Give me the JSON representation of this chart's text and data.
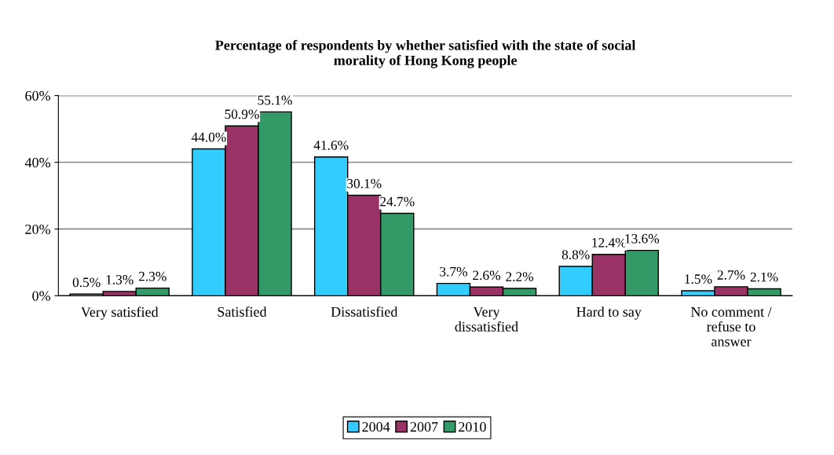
{
  "chart_data": {
    "type": "bar",
    "title": "Percentage of respondents by whether satisfied with the state of social\nmorality of Hong Kong people",
    "categories": [
      "Very satisfied",
      "Satisfied",
      "Dissatisfied",
      "Very\ndissatisfied",
      "Hard to say",
      "No comment /\nrefuse to\nanswer"
    ],
    "series": [
      {
        "name": "2004",
        "color": "#33ccff",
        "values": [
          0.5,
          44.0,
          41.6,
          3.7,
          8.8,
          1.5
        ],
        "value_labels": [
          "0.5%",
          "44.0%",
          "41.6%",
          "3.7%",
          "8.8%",
          "1.5%"
        ]
      },
      {
        "name": "2007",
        "color": "#993366",
        "values": [
          1.3,
          50.9,
          30.1,
          2.6,
          12.4,
          2.7
        ],
        "value_labels": [
          "1.3%",
          "50.9%",
          "30.1%",
          "2.6%",
          "12.4%",
          "2.7%"
        ]
      },
      {
        "name": "2010",
        "color": "#339966",
        "values": [
          2.3,
          55.1,
          24.7,
          2.2,
          13.6,
          2.1
        ],
        "value_labels": [
          "2.3%",
          "55.1%",
          "24.7%",
          "2.2%",
          "13.6%",
          "2.1%"
        ]
      }
    ],
    "ylim": [
      0,
      60
    ],
    "yticks": [
      {
        "value": 0,
        "label": "0%"
      },
      {
        "value": 20,
        "label": "20%"
      },
      {
        "value": 40,
        "label": "40%"
      },
      {
        "value": 60,
        "label": "60%"
      }
    ],
    "grid": "y",
    "legend": "bottom"
  }
}
